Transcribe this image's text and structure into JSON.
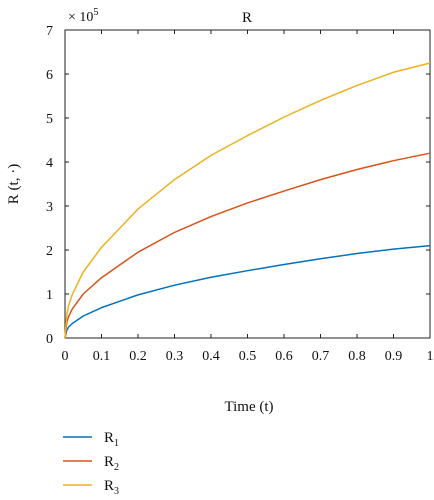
{
  "chart_data": {
    "type": "line",
    "title": "R",
    "xlabel": "Time (t)",
    "ylabel": "R (t, ·)",
    "multiplier_label": "× 10",
    "multiplier_exponent": "5",
    "multiplier": 100000,
    "xlim": [
      0,
      1
    ],
    "ylim": [
      0,
      7
    ],
    "x_ticks": [
      "0",
      "0.1",
      "0.2",
      "0.3",
      "0.4",
      "0.5",
      "0.6",
      "0.7",
      "0.8",
      "0.9",
      "1"
    ],
    "y_ticks": [
      "0",
      "1",
      "2",
      "3",
      "4",
      "5",
      "6",
      "7"
    ],
    "grid": false,
    "legend_position": "bottom-left",
    "x": [
      0,
      0.005,
      0.01,
      0.02,
      0.05,
      0.1,
      0.2,
      0.3,
      0.4,
      0.5,
      0.6,
      0.7,
      0.8,
      0.9,
      1.0
    ],
    "series": [
      {
        "name": "R",
        "subscript": "1",
        "color": "#0072BD",
        "values": [
          0,
          0.18,
          0.25,
          0.33,
          0.5,
          0.69,
          0.98,
          1.2,
          1.38,
          1.53,
          1.67,
          1.8,
          1.92,
          2.02,
          2.1
        ]
      },
      {
        "name": "R",
        "subscript": "2",
        "color": "#D95319",
        "values": [
          0,
          0.36,
          0.49,
          0.66,
          1.0,
          1.37,
          1.95,
          2.4,
          2.76,
          3.07,
          3.34,
          3.6,
          3.83,
          4.03,
          4.2
        ]
      },
      {
        "name": "R",
        "subscript": "3",
        "color": "#EDB120",
        "values": [
          0,
          0.55,
          0.74,
          0.99,
          1.5,
          2.06,
          2.93,
          3.6,
          4.15,
          4.6,
          5.02,
          5.4,
          5.74,
          6.04,
          6.25
        ]
      }
    ]
  }
}
